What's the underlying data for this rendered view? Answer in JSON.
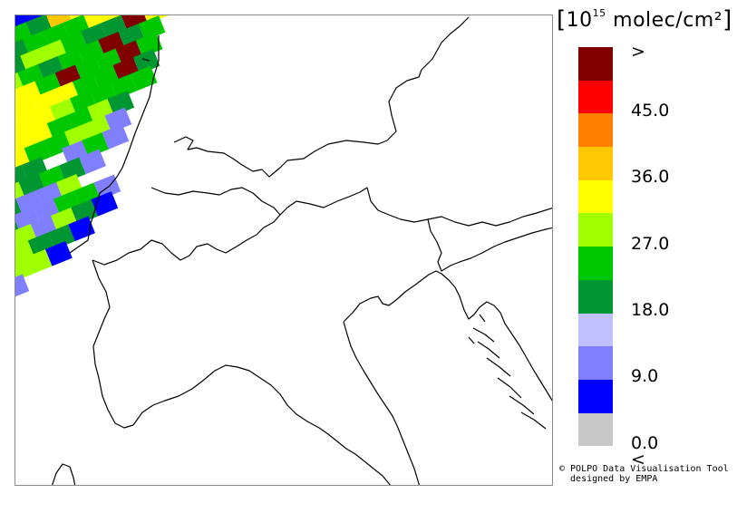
{
  "legend": {
    "unit_prefix": "10",
    "unit_exponent": "15",
    "unit_suffix": "molec/cm²",
    "bins": [
      {
        "color": "#800000",
        "label": ">"
      },
      {
        "color": "#ff0000",
        "label": "45.0"
      },
      {
        "color": "#ff8000",
        "label": ""
      },
      {
        "color": "#ffc800",
        "label": "36.0"
      },
      {
        "color": "#ffff00",
        "label": ""
      },
      {
        "color": "#a0ff00",
        "label": "27.0"
      },
      {
        "color": "#00c800",
        "label": ""
      },
      {
        "color": "#009632",
        "label": "18.0"
      },
      {
        "color": "#c0c0ff",
        "label": ""
      },
      {
        "color": "#8080ff",
        "label": "9.0"
      },
      {
        "color": "#0000ff",
        "label": ""
      },
      {
        "color": "#c8c8c8",
        "label": "0.0"
      }
    ],
    "below_label": "<"
  },
  "credit": {
    "line1": "© POLPO Data Visualisation Tool",
    "line2": "  designed by EMPA"
  },
  "swath": {
    "rows": [
      [
        "b",
        "b",
        "b",
        "b",
        "i",
        "i",
        "g"
      ],
      [
        "g",
        "dg",
        "o",
        "y",
        "l",
        "g",
        "y",
        "g"
      ],
      [
        "dg",
        "g",
        "g",
        "g",
        "y",
        "y",
        "y",
        "g"
      ],
      [
        "dg",
        "l",
        "l",
        "g",
        "dg",
        "dg",
        "m",
        "y"
      ],
      [
        "l",
        "g",
        "dg",
        "g",
        "g",
        "m",
        "dg",
        "g"
      ],
      [
        "y",
        "y",
        "g",
        "m",
        "g",
        "g",
        "m",
        "g"
      ],
      [
        "y",
        "y",
        "y",
        "y",
        "g",
        "g",
        "m",
        "dg"
      ],
      [
        "y",
        "y",
        "y",
        "l",
        "g",
        "g",
        "g",
        "g"
      ],
      [
        "y",
        "y",
        "y",
        "g",
        "g",
        "l",
        "dg"
      ],
      [
        "o",
        "y",
        "g",
        "g",
        "l",
        "l",
        "i"
      ],
      [
        "g",
        "dg",
        "dg",
        "w",
        "i",
        "g",
        "i"
      ],
      [
        "g",
        "l",
        "dg",
        "g",
        "dg",
        "i",
        "w"
      ],
      [
        "g",
        "dg",
        "i",
        "i",
        "l",
        "w"
      ],
      [
        "dg",
        "dg",
        "i",
        "i",
        "g",
        "g",
        "i"
      ],
      [
        "l",
        "i",
        "l",
        "i",
        "l",
        "dg",
        "b"
      ],
      [
        "l",
        "l",
        "l",
        "dg",
        "dg",
        "b"
      ],
      [
        "i",
        "g",
        "l",
        "l",
        "b",
        "w"
      ],
      [
        "g",
        "g",
        "i",
        "w"
      ]
    ]
  }
}
